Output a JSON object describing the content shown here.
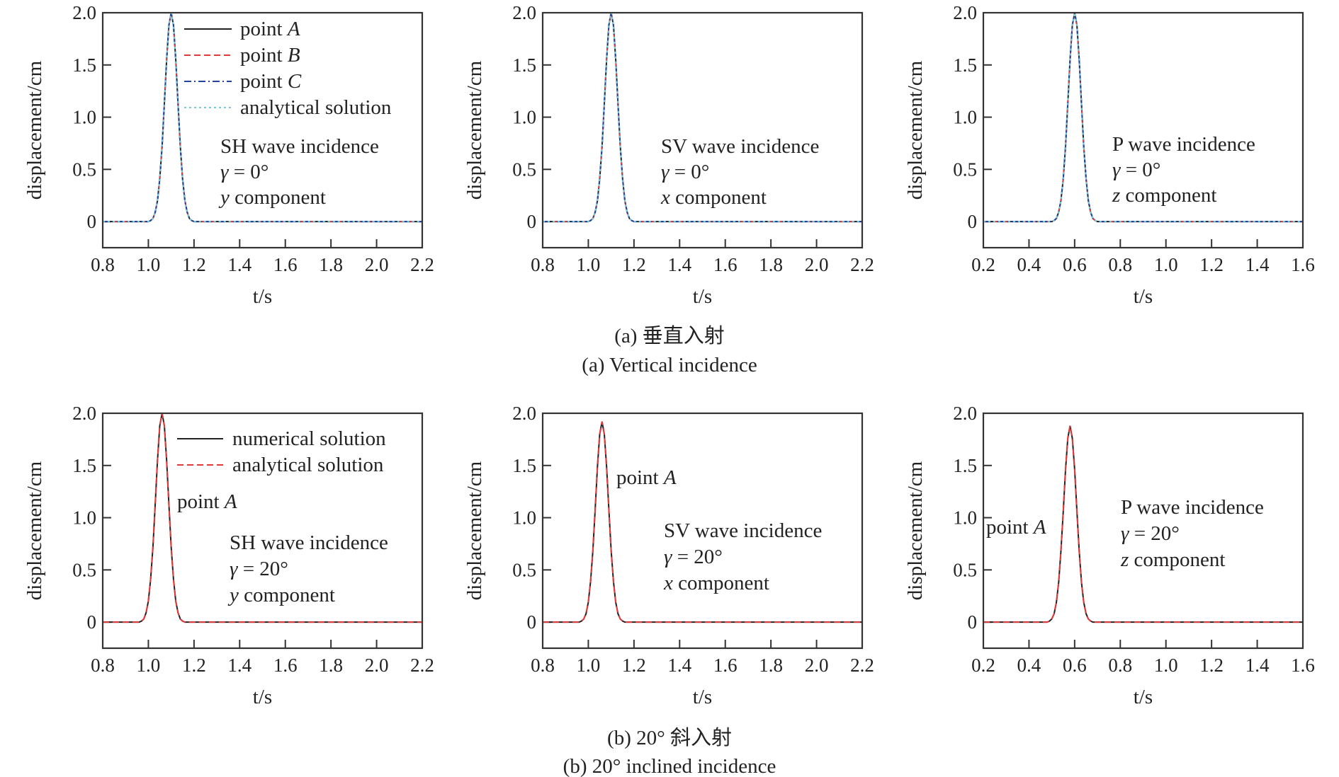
{
  "captions": {
    "a_cn": "(a) 垂直入射",
    "a_en": "(a) Vertical incidence",
    "b_cn": "(b) 20° 斜入射",
    "b_en": "(b) 20° inclined incidence"
  },
  "chart_data": [
    {
      "type": "line",
      "xlabel": "t/s",
      "ylabel": "displacement/cm",
      "xlim": [
        0.8,
        2.2
      ],
      "ylim": [
        -0.25,
        2.0
      ],
      "xticks": [
        "0.8",
        "1.0",
        "1.2",
        "1.4",
        "1.6",
        "1.8",
        "2.0",
        "2.2"
      ],
      "yticks": [
        "0",
        "0.5",
        "1.0",
        "1.5",
        "2.0"
      ],
      "annotation": [
        "SH wave incidence",
        "γ = 0°",
        "y component"
      ],
      "legend_placement": "top-right",
      "x": [
        0.8,
        1.0,
        1.01,
        1.02,
        1.03,
        1.04,
        1.05,
        1.06,
        1.07,
        1.08,
        1.09,
        1.1,
        1.11,
        1.12,
        1.13,
        1.14,
        1.15,
        1.16,
        1.17,
        1.18,
        1.19,
        1.2,
        2.2
      ],
      "y": [
        0,
        0,
        0.01,
        0.03,
        0.09,
        0.2,
        0.41,
        0.72,
        1.13,
        1.55,
        1.88,
        2.0,
        1.88,
        1.55,
        1.13,
        0.72,
        0.41,
        0.2,
        0.09,
        0.03,
        0.01,
        0,
        0
      ],
      "series": [
        {
          "name": "point A",
          "color": "#222222",
          "style": "solid"
        },
        {
          "name": "point B",
          "color": "#e03a3a",
          "style": "dashed"
        },
        {
          "name": "point C",
          "color": "#22449a",
          "style": "dashdot"
        },
        {
          "name": "analytical solution",
          "color": "#74cbd8",
          "style": "dotted"
        }
      ]
    },
    {
      "type": "line",
      "xlabel": "t/s",
      "ylabel": "displacement/cm",
      "xlim": [
        0.8,
        2.2
      ],
      "ylim": [
        -0.25,
        2.0
      ],
      "xticks": [
        "0.8",
        "1.0",
        "1.2",
        "1.4",
        "1.6",
        "1.8",
        "2.0",
        "2.2"
      ],
      "yticks": [
        "0",
        "0.5",
        "1.0",
        "1.5",
        "2.0"
      ],
      "annotation": [
        "SV wave incidence",
        "γ = 0°",
        "x component"
      ],
      "x": [
        0.8,
        1.0,
        1.01,
        1.02,
        1.03,
        1.04,
        1.05,
        1.06,
        1.07,
        1.08,
        1.09,
        1.1,
        1.11,
        1.12,
        1.13,
        1.14,
        1.15,
        1.16,
        1.17,
        1.18,
        1.19,
        1.2,
        2.2
      ],
      "y": [
        0,
        0,
        0.01,
        0.03,
        0.09,
        0.2,
        0.41,
        0.72,
        1.13,
        1.55,
        1.88,
        2.0,
        1.88,
        1.55,
        1.13,
        0.72,
        0.41,
        0.2,
        0.09,
        0.03,
        0.01,
        0,
        0
      ],
      "series": [
        {
          "color": "#222222",
          "style": "solid"
        },
        {
          "color": "#e03a3a",
          "style": "dashed"
        },
        {
          "color": "#22449a",
          "style": "dashdot"
        },
        {
          "color": "#74cbd8",
          "style": "dotted"
        }
      ]
    },
    {
      "type": "line",
      "xlabel": "t/s",
      "ylabel": "displacement/cm",
      "xlim": [
        0.2,
        1.6
      ],
      "ylim": [
        -0.25,
        2.0
      ],
      "xticks": [
        "0.2",
        "0.4",
        "0.6",
        "0.8",
        "1.0",
        "1.2",
        "1.4",
        "1.6"
      ],
      "yticks": [
        "0",
        "0.5",
        "1.0",
        "1.5",
        "2.0"
      ],
      "annotation": [
        "P wave incidence",
        "γ = 0°",
        "z component"
      ],
      "x": [
        0.2,
        0.5,
        0.51,
        0.52,
        0.53,
        0.54,
        0.55,
        0.56,
        0.57,
        0.58,
        0.59,
        0.6,
        0.61,
        0.62,
        0.63,
        0.64,
        0.65,
        0.66,
        0.67,
        0.68,
        0.69,
        0.7,
        1.6
      ],
      "y": [
        0,
        0,
        0.01,
        0.03,
        0.09,
        0.2,
        0.41,
        0.72,
        1.13,
        1.55,
        1.88,
        2.0,
        1.88,
        1.55,
        1.13,
        0.72,
        0.41,
        0.2,
        0.09,
        0.03,
        0.01,
        0,
        0
      ],
      "series": [
        {
          "color": "#222222",
          "style": "solid"
        },
        {
          "color": "#e03a3a",
          "style": "dashed"
        },
        {
          "color": "#22449a",
          "style": "dashdot"
        },
        {
          "color": "#74cbd8",
          "style": "dotted"
        }
      ]
    },
    {
      "type": "line",
      "xlabel": "t/s",
      "ylabel": "displacement/cm",
      "xlim": [
        0.8,
        2.2
      ],
      "ylim": [
        -0.25,
        2.0
      ],
      "xticks": [
        "0.8",
        "1.0",
        "1.2",
        "1.4",
        "1.6",
        "1.8",
        "2.0",
        "2.2"
      ],
      "yticks": [
        "0",
        "0.5",
        "1.0",
        "1.5",
        "2.0"
      ],
      "annotation": [
        "SH wave incidence",
        "γ = 20°",
        "y component"
      ],
      "point_label": "point A",
      "legend_placement": "top-right",
      "x": [
        0.8,
        0.96,
        0.97,
        0.98,
        0.99,
        1.0,
        1.01,
        1.02,
        1.03,
        1.04,
        1.05,
        1.06,
        1.07,
        1.08,
        1.09,
        1.1,
        1.11,
        1.12,
        1.13,
        1.14,
        1.15,
        1.16,
        2.2
      ],
      "y": [
        0,
        0,
        0.01,
        0.03,
        0.09,
        0.2,
        0.41,
        0.72,
        1.13,
        1.55,
        1.88,
        2.0,
        1.88,
        1.55,
        1.13,
        0.72,
        0.41,
        0.2,
        0.09,
        0.03,
        0.01,
        0,
        0
      ],
      "series": [
        {
          "name": "numerical solution",
          "color": "#222222",
          "style": "solid"
        },
        {
          "name": "analytical solution",
          "color": "#e03a3a",
          "style": "dashed"
        }
      ]
    },
    {
      "type": "line",
      "xlabel": "t/s",
      "ylabel": "displacement/cm",
      "xlim": [
        0.8,
        2.2
      ],
      "ylim": [
        -0.25,
        2.0
      ],
      "xticks": [
        "0.8",
        "1.0",
        "1.2",
        "1.4",
        "1.6",
        "1.8",
        "2.0",
        "2.2"
      ],
      "yticks": [
        "0",
        "0.5",
        "1.0",
        "1.5",
        "2.0"
      ],
      "annotation": [
        "SV wave incidence",
        "γ = 20°",
        "x component"
      ],
      "point_label": "point A",
      "x": [
        0.8,
        0.96,
        0.97,
        0.98,
        0.99,
        1.0,
        1.01,
        1.02,
        1.03,
        1.04,
        1.05,
        1.06,
        1.07,
        1.08,
        1.09,
        1.1,
        1.11,
        1.12,
        1.13,
        1.14,
        1.15,
        1.16,
        2.2
      ],
      "y": [
        0,
        0,
        0.01,
        0.03,
        0.08,
        0.19,
        0.39,
        0.69,
        1.08,
        1.49,
        1.8,
        1.92,
        1.8,
        1.49,
        1.08,
        0.69,
        0.39,
        0.19,
        0.08,
        0.03,
        0.01,
        0,
        0
      ],
      "series": [
        {
          "color": "#222222",
          "style": "solid"
        },
        {
          "color": "#e03a3a",
          "style": "dashed"
        }
      ]
    },
    {
      "type": "line",
      "xlabel": "t/s",
      "ylabel": "displacement/cm",
      "xlim": [
        0.2,
        1.6
      ],
      "ylim": [
        -0.25,
        2.0
      ],
      "xticks": [
        "0.2",
        "0.4",
        "0.6",
        "0.8",
        "1.0",
        "1.2",
        "1.4",
        "1.6"
      ],
      "yticks": [
        "0",
        "0.5",
        "1.0",
        "1.5",
        "2.0"
      ],
      "annotation": [
        "P wave incidence",
        "γ = 20°",
        "z component"
      ],
      "point_label": "point A",
      "x": [
        0.2,
        0.48,
        0.49,
        0.5,
        0.51,
        0.52,
        0.53,
        0.54,
        0.55,
        0.56,
        0.57,
        0.58,
        0.59,
        0.6,
        0.61,
        0.62,
        0.63,
        0.64,
        0.65,
        0.66,
        0.67,
        0.68,
        1.6
      ],
      "y": [
        0,
        0,
        0.01,
        0.03,
        0.08,
        0.19,
        0.38,
        0.68,
        1.06,
        1.46,
        1.76,
        1.88,
        1.76,
        1.46,
        1.06,
        0.68,
        0.38,
        0.19,
        0.08,
        0.03,
        0.01,
        0,
        0
      ],
      "series": [
        {
          "color": "#222222",
          "style": "solid"
        },
        {
          "color": "#e03a3a",
          "style": "dashed"
        }
      ]
    }
  ]
}
